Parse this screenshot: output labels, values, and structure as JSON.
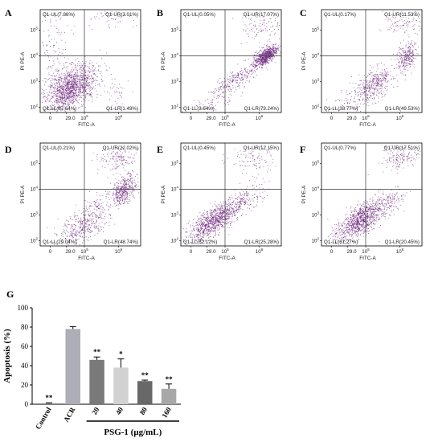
{
  "colors": {
    "dots": "#6a1f7a",
    "frame": "#000000"
  },
  "panels": [
    {
      "label": "A",
      "ul": "Q1-UL(7.86%)",
      "ur": "Q1-UR(3.01%)",
      "ll": "Q1-LL(87.64%)",
      "lr": "Q1-LR(1.49%)",
      "xaxis": "FITC-A",
      "yaxis": "PI PE-A"
    },
    {
      "label": "B",
      "ul": "Q1-UL(0.05%)",
      "ur": "Q1-UR(17.07%)",
      "ll": "Q1-LL(3.64%)",
      "lr": "Q1-LR(79.24%)",
      "xaxis": "FITC-A",
      "yaxis": "PI PE-A"
    },
    {
      "label": "C",
      "ul": "Q1-UL(0.17%)",
      "ur": "Q1-UR(11.53%)",
      "ll": "Q1-LL(38.77%)",
      "lr": "Q1-LR(49.53%)",
      "xaxis": "FITC-A",
      "yaxis": "PI PE-A"
    },
    {
      "label": "D",
      "ul": "Q1-UL(0.21%)",
      "ur": "Q1-UR(22.02%)",
      "ll": "Q1-LL(29.04%)",
      "lr": "Q1-LR(48.74%)",
      "xaxis": "FITC-A",
      "yaxis": "PI PE-A"
    },
    {
      "label": "E",
      "ul": "Q1-UL(0.45%)",
      "ur": "Q1-UR(12.15%)",
      "ll": "Q1-LL(62.12%)",
      "lr": "Q1-LR(25.28%)",
      "xaxis": "FITC-A",
      "yaxis": "PI PE-A"
    },
    {
      "label": "F",
      "ul": "Q1-UL(0.77%)",
      "ur": "Q1-UR(17.51%)",
      "ll": "Q1-LL(61.27%)",
      "lr": "Q1-LR(20.45%)",
      "xaxis": "FITC-A",
      "yaxis": "PI PE-A"
    }
  ],
  "chart_data": {
    "type": "bar",
    "panel_label": "G",
    "categories": [
      "Control",
      "ACR",
      "20",
      "40",
      "80",
      "160"
    ],
    "values": [
      1,
      78,
      46,
      38,
      24,
      16
    ],
    "errors": [
      0.5,
      2.5,
      3,
      9,
      1,
      5
    ],
    "significance": [
      "**",
      "",
      "**",
      "*",
      "**",
      "**"
    ],
    "bar_colors": [
      "#8a8a8a",
      "#aeaeb6",
      "#7a7a7a",
      "#d2d2d2",
      "#686868",
      "#a8a8a8"
    ],
    "ylabel": "Apoptosis (%)",
    "xlabel": "PSG-1 (μg/mL)",
    "ylim": [
      0,
      100
    ],
    "yticks": [
      "0",
      "20",
      "40",
      "60",
      "80",
      "100"
    ],
    "grid": false
  }
}
